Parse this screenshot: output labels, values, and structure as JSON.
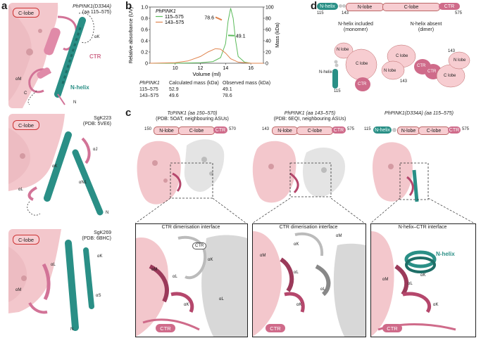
{
  "panel_a": {
    "label": "a",
    "box1": {
      "title": "PhPINK1(D334A)",
      "subtitle": "(aa 115–575)",
      "chip": "C-lobe",
      "labels": {
        "ak": "αK",
        "ctr": "CTR",
        "am": "αM",
        "c": "C",
        "nhelix": "N-helix",
        "n": "N"
      }
    },
    "box2": {
      "title": "SgK223",
      "subtitle": "(PDB: 5VE6)",
      "chip": "C-lobe",
      "labels": {
        "aj": "αJ",
        "ak": "αK",
        "al": "αL",
        "an1": "αN1",
        "n": "N"
      }
    },
    "box3": {
      "title": "SgK269",
      "subtitle": "(PDB: 6BHC)",
      "chip": "C-lobe",
      "labels": {
        "ak": "αK",
        "al": "αL",
        "am": "αM",
        "as": "αS",
        "n": "N"
      }
    }
  },
  "panel_b": {
    "label": "b",
    "chart_data": {
      "type": "line",
      "xlabel": "Volume (ml)",
      "ylabel": "Relative absorbance (UV)",
      "y2label": "Mass (kDa)",
      "xlim": [
        8,
        17
      ],
      "ylim": [
        0,
        1.0
      ],
      "y2lim": [
        0,
        100
      ],
      "xticks": [
        "10",
        "12",
        "14",
        "16"
      ],
      "yticks": [
        "0",
        "0.2",
        "0.4",
        "0.6",
        "0.8",
        "1.0"
      ],
      "y2ticks": [
        "0",
        "20",
        "40",
        "60",
        "80",
        "100"
      ],
      "legend_title": "PhPINK1",
      "series": [
        {
          "name": "115–575",
          "color": "#5bbb5b",
          "x": [
            8.0,
            10.0,
            12.0,
            13.0,
            13.6,
            14.0,
            14.2,
            14.4,
            14.6,
            14.8,
            15.0,
            15.5,
            16.0,
            17.0
          ],
          "y": [
            0.0,
            0.0,
            0.01,
            0.03,
            0.1,
            0.35,
            0.75,
            0.98,
            0.8,
            0.4,
            0.12,
            0.02,
            0.0,
            0.0
          ]
        },
        {
          "name": "143–575",
          "color": "#e0844e",
          "x": [
            8.0,
            10.0,
            11.0,
            12.0,
            12.6,
            13.2,
            13.6,
            14.0,
            14.4,
            15.0,
            16.0,
            17.0
          ],
          "y": [
            0.0,
            0.01,
            0.04,
            0.12,
            0.2,
            0.26,
            0.25,
            0.18,
            0.08,
            0.02,
            0.0,
            0.0
          ]
        }
      ],
      "mass_segments": [
        {
          "series": "143–575",
          "label": "78.6",
          "x": [
            13.2,
            13.7
          ],
          "y": [
            82,
            77
          ]
        },
        {
          "series": "115–575",
          "label": "49.1",
          "x": [
            14.2,
            14.7
          ],
          "y": [
            49.5,
            49.1
          ]
        }
      ]
    },
    "table": {
      "headers": [
        "PhPINK1",
        "Calculated mass (kDa)",
        "Observed mass (kDa)"
      ],
      "rows": [
        [
          "115–575",
          "52.9",
          "49.1"
        ],
        [
          "143–575",
          "49.6",
          "78.6"
        ]
      ]
    }
  },
  "panel_c": {
    "label": "c",
    "col1": {
      "title1": "TcPINK1 (aa 150–570)",
      "title2": "(PDB: 5OAT, neighbouring ASUs)",
      "start": "150",
      "end": "570",
      "nlobe": "N-lobe",
      "clobe": "C-lobe",
      "ctr": "CTR",
      "zoom_title": "CTR dimerisation interface",
      "labels": {
        "ctr_top": "CTR",
        "ak1": "αK",
        "am": "αM",
        "al1": "αL",
        "al2": "αL",
        "ak2": "αK",
        "ctr_bottom": "CTR"
      }
    },
    "col2": {
      "title1": "PhPINK1 (aa 143–575)",
      "title2": "(PDB: 6EQI, neighbouring ASUs)",
      "start": "143",
      "end": "575",
      "nlobe": "N-lobe",
      "clobe": "C-lobe",
      "ctr": "CTR",
      "zoom_title": "CTR dimerisation interface",
      "labels": {
        "ak1": "αK",
        "am1": "αM",
        "am2": "αM",
        "al1": "αL",
        "al2": "αL",
        "ak2": "αK",
        "ctr_bottom": "CTR"
      }
    },
    "col3": {
      "title1": "PhPINK1(D334A) (aa 115–575)",
      "start": "115",
      "end": "575",
      "nhelix": "N-helix",
      "nlobe": "N-lobe",
      "clobe": "C-lobe",
      "ctr": "CTR",
      "zoom_title": "N-helix–CTR interface",
      "labels": {
        "nhelix": "N-helix",
        "ak1": "αK",
        "am": "αM",
        "al": "αL",
        "ak2": "αK",
        "ctr_bottom": "CTR"
      }
    }
  },
  "panel_d": {
    "label": "d",
    "bar": {
      "nhelix": "N-helix",
      "nlobe": "N-lobe",
      "clobe": "C-lobe",
      "ctr": "CTR",
      "n115": "115",
      "n143": "143",
      "n575": "575"
    },
    "left_title1": "N-helix included",
    "left_title2": "(monomer)",
    "right_title1": "N-helix absent",
    "right_title2": "(dimer)",
    "left": {
      "nlobe": "N lobe",
      "clobe": "C lobe",
      "nhelix": "N-helix",
      "ctr": "CTR",
      "n115": "115"
    },
    "right": {
      "clobe1": "C lobe",
      "nlobe1": "N lobe",
      "ctr1": "CTR",
      "n143a": "143",
      "ctr2": "CTR",
      "clobe2": "C lobe",
      "nlobe2": "N lobe",
      "n143b": "143"
    }
  },
  "colors": {
    "teal": "#2a8f86",
    "light_pink": "#f7cdd1",
    "dark_pink": "#cf6b8a",
    "green": "#5bbb5b",
    "orange": "#e0844e"
  }
}
